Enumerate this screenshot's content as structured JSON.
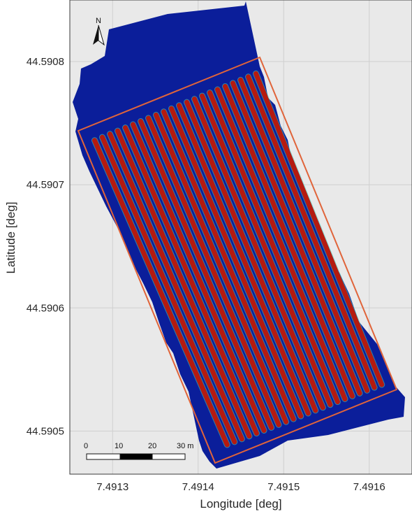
{
  "map": {
    "xlabel": "Longitude [deg]",
    "ylabel": "Latitude [deg]",
    "x_ticks": [
      "7.4913",
      "7.4914",
      "7.4915",
      "7.4916"
    ],
    "y_ticks": [
      "44.5908",
      "44.5907",
      "44.5906",
      "44.5905"
    ],
    "x_tick_values": [
      7.4913,
      7.4914,
      7.4915,
      7.4916
    ],
    "y_tick_values": [
      44.5908,
      44.5907,
      44.5906,
      44.5905
    ],
    "xlim": [
      7.49125,
      7.49165
    ],
    "ylim": [
      44.590465,
      44.59085
    ],
    "grid": true,
    "north_arrow_label": "N",
    "scale_bar": {
      "labels": [
        "0",
        "10",
        "20",
        "30 m"
      ]
    },
    "row_count": 22,
    "colors": {
      "background": "#e9e9e9",
      "field": "#0b1e9a",
      "rows": "#b51a10",
      "row_edge": "#37d7c9",
      "boundary": "#e0643a",
      "grid": "#cfcfcf"
    }
  }
}
